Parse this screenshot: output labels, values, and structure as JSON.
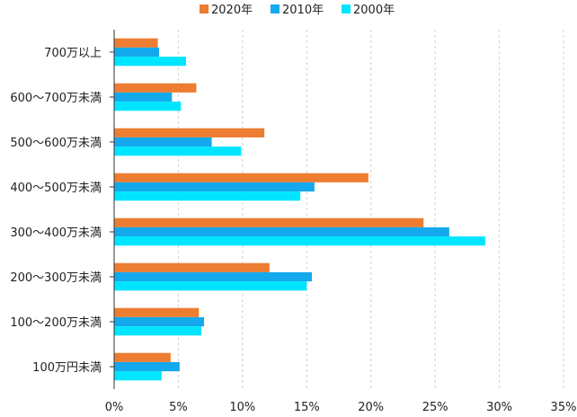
{
  "chart_data": {
    "type": "bar",
    "orientation": "horizontal",
    "categories": [
      "700万以上",
      "600〜700万未満",
      "500〜600万未満",
      "400〜500万未満",
      "300〜400万未満",
      "200〜300万未満",
      "100〜200万未満",
      "100万円未満"
    ],
    "series": [
      {
        "name": "2020年",
        "color": "#ED7D31",
        "values": [
          3.4,
          6.4,
          11.7,
          19.8,
          24.1,
          12.1,
          6.6,
          4.4
        ]
      },
      {
        "name": "2010年",
        "color": "#14A8EC",
        "values": [
          3.5,
          4.5,
          7.6,
          15.6,
          26.1,
          15.4,
          7.0,
          5.1
        ]
      },
      {
        "name": "2000年",
        "color": "#00E5FF",
        "values": [
          5.6,
          5.2,
          9.9,
          14.5,
          28.9,
          15.0,
          6.8,
          3.7
        ]
      }
    ],
    "xlim": [
      0,
      35
    ],
    "xticks": [
      "0%",
      "5%",
      "10%",
      "15%",
      "20%",
      "25%",
      "30%",
      "35%"
    ],
    "grid": "vertical-dashed",
    "legend": "top-center"
  }
}
